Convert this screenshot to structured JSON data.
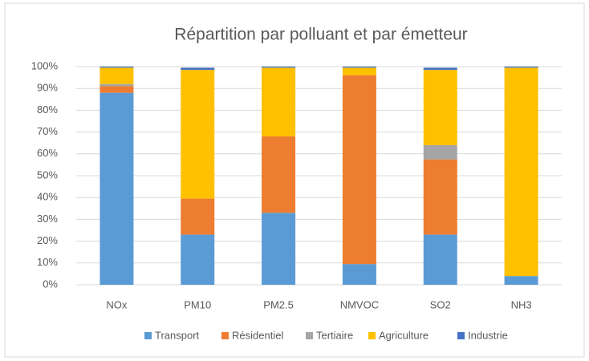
{
  "chart_data": {
    "type": "stacked_bar",
    "title": "Répartition par polluant et par émetteur",
    "categories": [
      "NOx",
      "PM10",
      "PM2.5",
      "NMVOC",
      "SO2",
      "NH3"
    ],
    "series": [
      {
        "name": "Transport",
        "color": "#5b9bd5",
        "values": [
          88,
          23,
          33,
          9.5,
          23,
          4
        ]
      },
      {
        "name": "Résidentiel",
        "color": "#ed7d31",
        "values": [
          3,
          16.5,
          35,
          86.5,
          34.5,
          0
        ]
      },
      {
        "name": "Tertiaire",
        "color": "#a5a5a5",
        "values": [
          1,
          0,
          0,
          0,
          6.5,
          0
        ]
      },
      {
        "name": "Agriculture",
        "color": "#ffc000",
        "values": [
          7.5,
          59,
          31.5,
          3.5,
          34.5,
          95.5
        ]
      },
      {
        "name": "Industrie",
        "color": "#4472c4",
        "values": [
          0.5,
          1,
          0.5,
          0.5,
          1,
          0.5
        ]
      }
    ],
    "ylim": [
      0,
      100
    ],
    "yticks": [
      {
        "value": 0,
        "label": "0%"
      },
      {
        "value": 10,
        "label": "10%"
      },
      {
        "value": 20,
        "label": "20%"
      },
      {
        "value": 30,
        "label": "30%"
      },
      {
        "value": 40,
        "label": "40%"
      },
      {
        "value": 50,
        "label": "50%"
      },
      {
        "value": 60,
        "label": "60%"
      },
      {
        "value": 70,
        "label": "70%"
      },
      {
        "value": 80,
        "label": "80%"
      },
      {
        "value": 90,
        "label": "90%"
      },
      {
        "value": 100,
        "label": "100%"
      }
    ],
    "grid": true,
    "legend": "bottom"
  }
}
